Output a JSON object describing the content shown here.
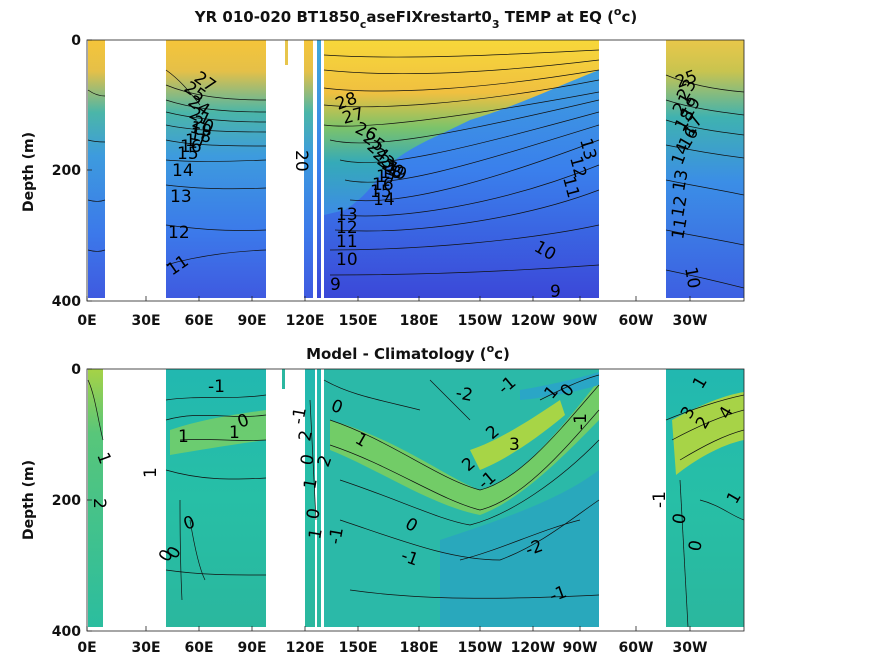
{
  "chart_data": [
    {
      "type": "heatmap",
      "title": {
        "main": "YR 010-020 BT1850",
        "sub1": "c",
        "mid": "aseFIXrestart0",
        "sub2": "3",
        "tail": " TEMP at EQ (",
        "sup": "o",
        "end": "c)"
      },
      "xlabel": "",
      "ylabel": "Depth (m)",
      "x_ticks": [
        "0E",
        "30E",
        "60E",
        "90E",
        "120E",
        "150E",
        "180E",
        "150W",
        "120W",
        "90W",
        "60W",
        "30W"
      ],
      "y_ticks": [
        "0",
        "200",
        "400"
      ],
      "ylim": [
        400,
        0
      ],
      "grid": false,
      "contour_labels": [
        "27",
        "25",
        "24",
        "21",
        "20",
        "19",
        "18",
        "17",
        "16",
        "15",
        "14",
        "13",
        "12",
        "11",
        "20",
        "28",
        "27",
        "26",
        "25",
        "24",
        "23",
        "21",
        "20",
        "19",
        "18",
        "17",
        "16",
        "15",
        "14",
        "13",
        "12",
        "11",
        "10",
        "9",
        "13",
        "12",
        "11",
        "10",
        "9",
        "25",
        "23",
        "21",
        "19",
        "18",
        "17",
        "16",
        "14",
        "13",
        "12",
        "11",
        "10"
      ]
    },
    {
      "type": "heatmap",
      "title": {
        "main": "Model - Climatology (",
        "sup": "o",
        "end": "c)"
      },
      "xlabel": "",
      "ylabel": "Depth (m)",
      "x_ticks": [
        "0E",
        "30E",
        "60E",
        "90E",
        "120E",
        "150E",
        "180E",
        "150W",
        "120W",
        "90W",
        "60W",
        "30W"
      ],
      "y_ticks": [
        "0",
        "200",
        "400"
      ],
      "ylim": [
        400,
        0
      ],
      "grid": false,
      "contour_labels": [
        "1",
        "2",
        "1",
        "1",
        "0",
        "0",
        "0",
        "-1",
        "0",
        "1",
        "-1",
        "0",
        "2",
        "1",
        "0",
        "1",
        "-1",
        "0",
        "1",
        "2",
        "-2",
        "-1",
        "1",
        "0",
        "2",
        "3",
        "2",
        "-1",
        "-1",
        "-2",
        "-1",
        "0",
        "-1",
        "1",
        "3",
        "2",
        "4",
        "-1",
        "0",
        "0",
        "1"
      ]
    }
  ],
  "colors": {
    "deep": "#3c3cd8",
    "cold": "#3a8ff0",
    "mid": "#2bb7a0",
    "warm": "#9bd04a",
    "hot": "#f2c634",
    "hottest": "#f6de2a",
    "missing": "#ffffff"
  }
}
